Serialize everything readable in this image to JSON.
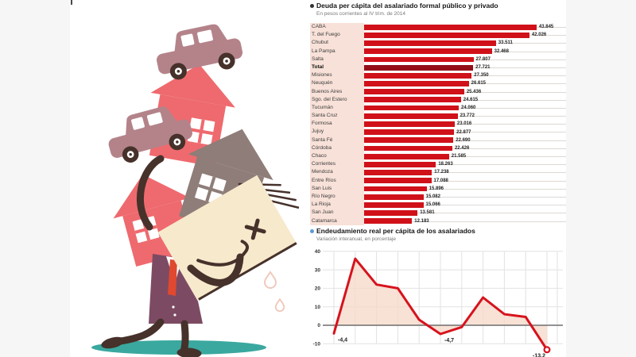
{
  "page": {
    "background": "#f6f6f6",
    "canvas_background": "#ffffff"
  },
  "chart_data": [
    {
      "type": "bar",
      "orientation": "horizontal",
      "title": "Deuda per cápita del asalariado formal público y privado",
      "subtitle": "En pesos corrientes al IV trim. de 2014",
      "categories": [
        "CABA",
        "T. del Fuego",
        "Chubut",
        "La Pampa",
        "Salta",
        "Total",
        "Misiones",
        "Neuquén",
        "Buenos Aires",
        "Sgo. del Estero",
        "Tucumán",
        "Santa Cruz",
        "Formosa",
        "Jujuy",
        "Santa Fé",
        "Córdoba",
        "Chaco",
        "Corrientes",
        "Mendoza",
        "Entre Ríos",
        "San Luis",
        "Río Negro",
        "La Rioja",
        "San Juan",
        "Catamarca"
      ],
      "values": [
        43845,
        42026,
        33511,
        32468,
        27807,
        27721,
        27350,
        26615,
        25436,
        24615,
        24060,
        23772,
        23016,
        22877,
        22690,
        22426,
        21585,
        18263,
        17238,
        17088,
        15896,
        15082,
        15066,
        13581,
        12183
      ],
      "value_labels": [
        "43.845",
        "42.026",
        "33.511",
        "32.468",
        "27.807",
        "27.721",
        "27.350",
        "26.615",
        "25.436",
        "24.615",
        "24.060",
        "23.772",
        "23.016",
        "22.877",
        "22.690",
        "22.426",
        "21.585",
        "18.263",
        "17.238",
        "17.088",
        "15.896",
        "15.082",
        "15.066",
        "13.581",
        "12.183"
      ],
      "emphasized_category": "Total",
      "bar_color": "#d01119",
      "emphasized_bar_color": "#941019",
      "label_background": "#f8e1d8",
      "bullet_color": "#333333"
    },
    {
      "type": "line",
      "title": "Endeudamiento real per cápita de los asalariados",
      "subtitle": "Variación interanual, en porcentaje",
      "values": [
        -4.4,
        36,
        22,
        20,
        3,
        -4.7,
        -1,
        15,
        6,
        4.5,
        -13.2
      ],
      "y_ticks": [
        40,
        30,
        20,
        10,
        0,
        -10
      ],
      "ylim": [
        -15,
        40
      ],
      "grid": true,
      "legend": "none",
      "end_marker": "open-circle",
      "annotations": [
        {
          "point_index": 0,
          "text": "-4,4"
        },
        {
          "point_index": 5,
          "text": "-4,7"
        },
        {
          "point_index": 10,
          "text": "-13,2"
        }
      ],
      "line_color": "#d6131d",
      "area_color": "#f6d9cb",
      "grid_color": "#e2e2e2",
      "zero_line_color": "#6e6e6e",
      "bullet_color": "#5b9bd5"
    }
  ],
  "illustration": {
    "alt": "Persona cargando casas, autos y una carpeta",
    "colors": {
      "house_coral": "#ee6a6e",
      "car_mauve": "#b4838a",
      "house_taupe": "#8e7d78",
      "folder_cream": "#f7e9cc",
      "outline_brown": "#46312b",
      "suit_plum": "#7c4b63",
      "tie_red": "#e0482f",
      "ground_teal": "#3aa89f",
      "sweat_drop": "#f0c9bd"
    }
  }
}
